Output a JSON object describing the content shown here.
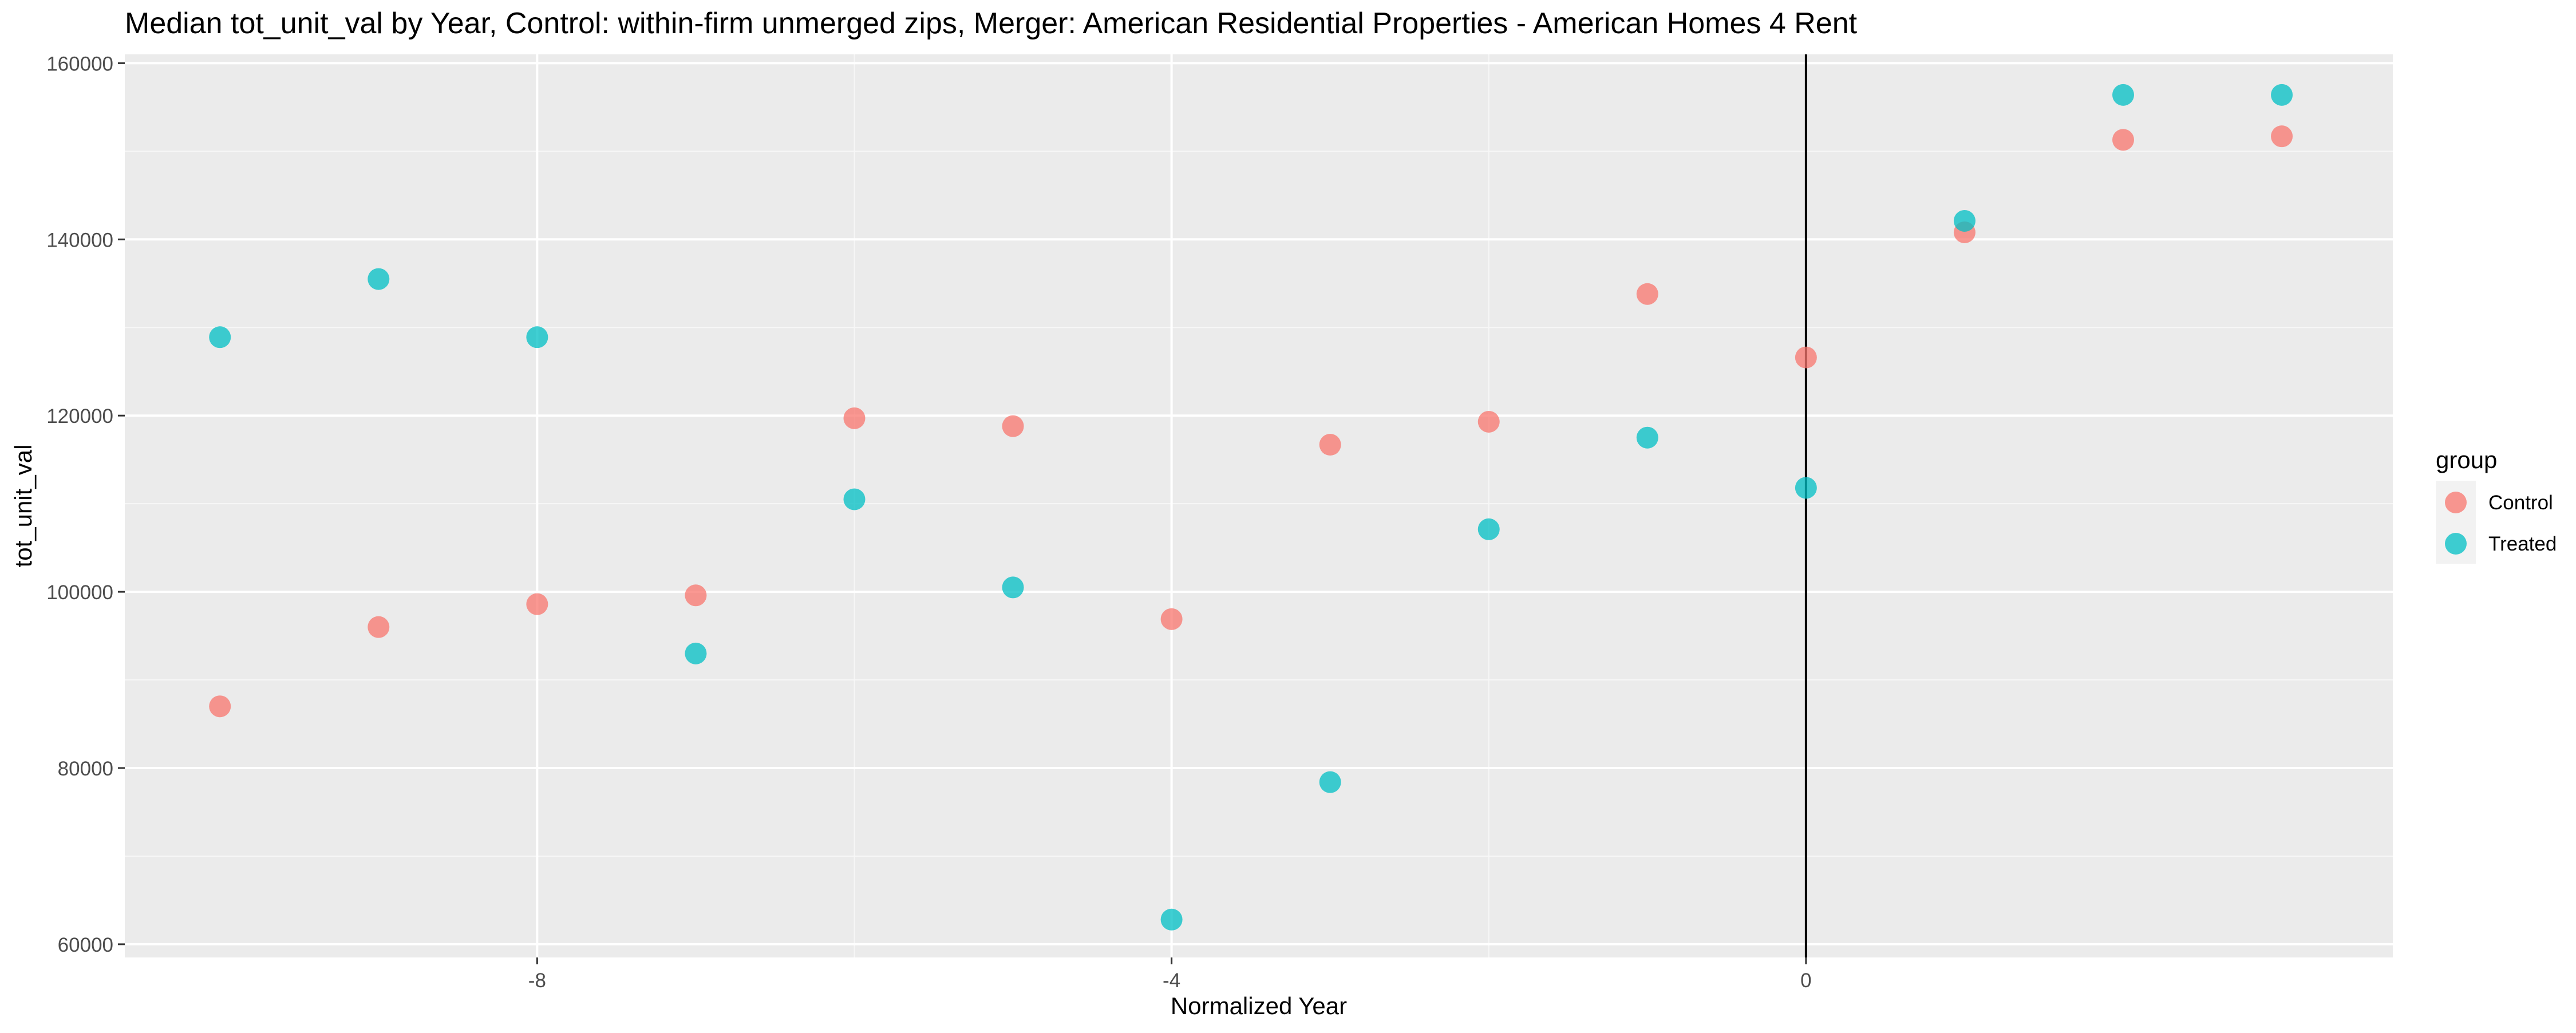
{
  "chart_data": {
    "type": "scatter",
    "title": "Median tot_unit_val by Year, Control: within-firm unmerged zips, Merger: American Residential Properties - American Homes 4 Rent",
    "xlabel": "Normalized Year",
    "ylabel": "tot_unit_val",
    "xlim": [
      -10.6,
      3.7
    ],
    "ylim": [
      58500,
      161000
    ],
    "x_ticks": [
      -8,
      -4,
      0
    ],
    "x_tick_labels": [
      "-8",
      "-4",
      "0"
    ],
    "y_ticks": [
      60000,
      80000,
      100000,
      120000,
      140000,
      160000
    ],
    "y_tick_labels": [
      "60000",
      "80000",
      "100000",
      "120000",
      "140000",
      "160000"
    ],
    "grid": true,
    "vline_x": 0,
    "legend": {
      "title": "group",
      "position": "right"
    },
    "series": [
      {
        "name": "Control",
        "color": "#F8766D",
        "points": [
          {
            "x": -10,
            "y": 87000
          },
          {
            "x": -9,
            "y": 96000
          },
          {
            "x": -8,
            "y": 98600
          },
          {
            "x": -7,
            "y": 99600
          },
          {
            "x": -6,
            "y": 119700
          },
          {
            "x": -5,
            "y": 118800
          },
          {
            "x": -4,
            "y": 96900
          },
          {
            "x": -3,
            "y": 116700
          },
          {
            "x": -2,
            "y": 119300
          },
          {
            "x": -1,
            "y": 133800
          },
          {
            "x": 0,
            "y": 126600
          },
          {
            "x": 1,
            "y": 140800
          },
          {
            "x": 2,
            "y": 151300
          },
          {
            "x": 3,
            "y": 151700
          }
        ]
      },
      {
        "name": "Treated",
        "color": "#00BFC4",
        "points": [
          {
            "x": -10,
            "y": 128900
          },
          {
            "x": -9,
            "y": 135500
          },
          {
            "x": -8,
            "y": 128900
          },
          {
            "x": -7,
            "y": 93000
          },
          {
            "x": -6,
            "y": 110500
          },
          {
            "x": -5,
            "y": 100500
          },
          {
            "x": -4,
            "y": 62800
          },
          {
            "x": -3,
            "y": 78400
          },
          {
            "x": -2,
            "y": 107100
          },
          {
            "x": -1,
            "y": 117500
          },
          {
            "x": 0,
            "y": 111800
          },
          {
            "x": 1,
            "y": 142100
          },
          {
            "x": 2,
            "y": 156400
          },
          {
            "x": 3,
            "y": 156400
          }
        ]
      }
    ]
  }
}
